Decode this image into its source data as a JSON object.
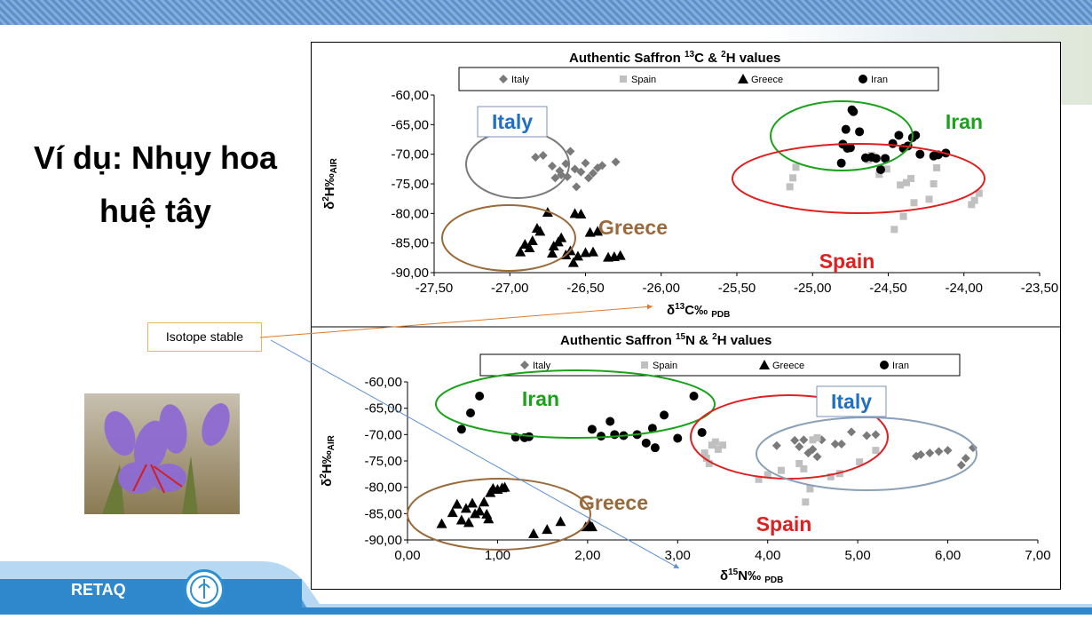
{
  "slide": {
    "title_line1": "Ví dụ: Nhụy hoa",
    "title_line2": "huệ tây",
    "callout": "Isotope stable",
    "brand": "RETAQ"
  },
  "colors": {
    "italy": "#7a7a7a",
    "spain": "#c0c0c0",
    "greece": "#000000",
    "iran": "#000000",
    "iran_ellipse": "#1aa31a",
    "spain_ellipse": "#e02020",
    "italy_label": "#1f6fc4",
    "greece_label": "#9a6a3a",
    "italy_ellipse_top": "#7a7a7a",
    "italy_ellipse_bottom": "#8aa0b8"
  },
  "chart_data": [
    {
      "type": "scatter",
      "title": "Authentic Saffron 13C & 2H values",
      "xlabel": "δ13C‰ PDB",
      "ylabel": "δ2H‰AIR",
      "xlim": [
        -27.5,
        -23.5
      ],
      "ylim": [
        -90,
        -60
      ],
      "x_ticks": [
        "-27,50",
        "-27,00",
        "-26,50",
        "-26,00",
        "-25,50",
        "-25,00",
        "-24,50",
        "-24,00",
        "-23,50"
      ],
      "y_ticks": [
        "-60,00",
        "-65,00",
        "-70,00",
        "-75,00",
        "-80,00",
        "-85,00",
        "-90,00"
      ],
      "legend": [
        "Italy",
        "Spain",
        "Greece",
        "Iran"
      ],
      "legend_position": "top",
      "annotations": [
        "Italy",
        "Greece",
        "Iran",
        "Spain"
      ],
      "series": [
        {
          "name": "Italy",
          "marker": "diamond",
          "points": [
            [
              -26.83,
              -70.5
            ],
            [
              -26.78,
              -70.2
            ],
            [
              -26.72,
              -72.0
            ],
            [
              -26.7,
              -74.0
            ],
            [
              -26.66,
              -73.5
            ],
            [
              -26.63,
              -71.6
            ],
            [
              -26.6,
              -69.5
            ],
            [
              -26.57,
              -72.5
            ],
            [
              -26.56,
              -75.5
            ],
            [
              -26.53,
              -73.0
            ],
            [
              -26.5,
              -71.5
            ],
            [
              -26.48,
              -74.0
            ],
            [
              -26.45,
              -73.2
            ],
            [
              -26.42,
              -72.3
            ],
            [
              -26.39,
              -71.9
            ],
            [
              -26.3,
              -71.3
            ],
            [
              -26.62,
              -73.8
            ],
            [
              -26.67,
              -72.8
            ]
          ]
        },
        {
          "name": "Spain",
          "marker": "square",
          "points": [
            [
              -25.15,
              -75.5
            ],
            [
              -25.13,
              -74.0
            ],
            [
              -25.11,
              -72.2
            ],
            [
              -24.63,
              -71.0
            ],
            [
              -24.61,
              -70.2
            ],
            [
              -24.56,
              -73.4
            ],
            [
              -24.51,
              -72.5
            ],
            [
              -24.46,
              -82.7
            ],
            [
              -24.42,
              -75.2
            ],
            [
              -24.4,
              -80.5
            ],
            [
              -24.38,
              -74.8
            ],
            [
              -24.35,
              -74.1
            ],
            [
              -24.33,
              -78.2
            ],
            [
              -24.23,
              -77.6
            ],
            [
              -24.2,
              -75.0
            ],
            [
              -24.18,
              -72.3
            ],
            [
              -23.95,
              -78.5
            ],
            [
              -23.93,
              -77.8
            ],
            [
              -23.9,
              -76.6
            ]
          ]
        },
        {
          "name": "Greece",
          "marker": "triangle",
          "points": [
            [
              -26.93,
              -86.5
            ],
            [
              -26.9,
              -85.2
            ],
            [
              -26.87,
              -85.8
            ],
            [
              -26.85,
              -84.6
            ],
            [
              -26.82,
              -82.5
            ],
            [
              -26.8,
              -83.0
            ],
            [
              -26.75,
              -79.8
            ],
            [
              -26.72,
              -86.7
            ],
            [
              -26.71,
              -85.5
            ],
            [
              -26.68,
              -84.8
            ],
            [
              -26.66,
              -84.1
            ],
            [
              -26.63,
              -87.0
            ],
            [
              -26.6,
              -86.3
            ],
            [
              -26.58,
              -88.3
            ],
            [
              -26.57,
              -80.0
            ],
            [
              -26.55,
              -87.2
            ],
            [
              -26.53,
              -80.1
            ],
            [
              -26.5,
              -86.6
            ],
            [
              -26.47,
              -83.2
            ],
            [
              -26.45,
              -86.5
            ],
            [
              -26.42,
              -83.0
            ],
            [
              -26.35,
              -87.4
            ],
            [
              -26.31,
              -87.3
            ],
            [
              -26.27,
              -87.1
            ]
          ]
        },
        {
          "name": "Iran",
          "marker": "circle",
          "points": [
            [
              -24.74,
              -62.5
            ],
            [
              -24.73,
              -62.8
            ],
            [
              -24.78,
              -65.8
            ],
            [
              -24.69,
              -66.2
            ],
            [
              -24.8,
              -68.3
            ],
            [
              -24.77,
              -69.0
            ],
            [
              -24.75,
              -68.9
            ],
            [
              -24.81,
              -71.5
            ],
            [
              -24.65,
              -70.6
            ],
            [
              -24.61,
              -70.5
            ],
            [
              -24.58,
              -70.7
            ],
            [
              -24.55,
              -72.6
            ],
            [
              -24.52,
              -70.7
            ],
            [
              -24.47,
              -68.2
            ],
            [
              -24.43,
              -66.8
            ],
            [
              -24.4,
              -69.0
            ],
            [
              -24.37,
              -68.6
            ],
            [
              -24.34,
              -67.2
            ],
            [
              -24.32,
              -66.8
            ],
            [
              -24.29,
              -70.0
            ],
            [
              -24.2,
              -70.3
            ],
            [
              -24.17,
              -70.1
            ],
            [
              -24.12,
              -69.8
            ]
          ]
        }
      ]
    },
    {
      "type": "scatter",
      "title": "Authentic Saffron 15N & 2H values",
      "xlabel": "δ15N‰ PDB",
      "ylabel": "δ2H‰AIR",
      "xlim": [
        0,
        7
      ],
      "ylim": [
        -90,
        -60
      ],
      "x_ticks": [
        "0,00",
        "1,00",
        "2,00",
        "3,00",
        "4,00",
        "5,00",
        "6,00",
        "7,00"
      ],
      "y_ticks": [
        "-60,00",
        "-65,00",
        "-70,00",
        "-75,00",
        "-80,00",
        "-85,00",
        "-90,00"
      ],
      "legend": [
        "Italy",
        "Spain",
        "Greece",
        "Iran"
      ],
      "legend_position": "top",
      "annotations": [
        "Iran",
        "Italy",
        "Greece",
        "Spain"
      ],
      "series": [
        {
          "name": "Italy",
          "marker": "diamond",
          "points": [
            [
              4.1,
              -72.1
            ],
            [
              4.3,
              -71.1
            ],
            [
              4.35,
              -72.3
            ],
            [
              4.4,
              -71.0
            ],
            [
              4.45,
              -73.5
            ],
            [
              4.5,
              -72.8
            ],
            [
              4.55,
              -74.2
            ],
            [
              4.6,
              -71.0
            ],
            [
              4.75,
              -71.8
            ],
            [
              4.82,
              -71.8
            ],
            [
              4.93,
              -69.5
            ],
            [
              5.1,
              -70.2
            ],
            [
              5.2,
              -70.0
            ],
            [
              5.65,
              -74.1
            ],
            [
              5.7,
              -73.8
            ],
            [
              5.8,
              -73.5
            ],
            [
              5.9,
              -73.2
            ],
            [
              6.0,
              -73.0
            ],
            [
              6.15,
              -75.8
            ],
            [
              6.2,
              -74.5
            ],
            [
              6.28,
              -72.5
            ]
          ]
        },
        {
          "name": "Spain",
          "marker": "square",
          "points": [
            [
              3.3,
              -73.5
            ],
            [
              3.32,
              -74.5
            ],
            [
              3.35,
              -75.5
            ],
            [
              3.38,
              -72.0
            ],
            [
              3.42,
              -71.4
            ],
            [
              3.45,
              -72.8
            ],
            [
              3.5,
              -72.0
            ],
            [
              3.9,
              -78.5
            ],
            [
              4.0,
              -77.6
            ],
            [
              4.15,
              -76.8
            ],
            [
              4.35,
              -75.5
            ],
            [
              4.4,
              -76.5
            ],
            [
              4.42,
              -82.8
            ],
            [
              4.47,
              -80.3
            ],
            [
              4.5,
              -71.0
            ],
            [
              4.55,
              -70.6
            ],
            [
              4.7,
              -78.0
            ],
            [
              4.8,
              -77.4
            ],
            [
              5.02,
              -75.2
            ],
            [
              5.2,
              -73.0
            ]
          ]
        },
        {
          "name": "Greece",
          "marker": "triangle",
          "points": [
            [
              0.38,
              -86.9
            ],
            [
              0.5,
              -84.8
            ],
            [
              0.55,
              -83.2
            ],
            [
              0.6,
              -86.2
            ],
            [
              0.65,
              -84.0
            ],
            [
              0.68,
              -86.7
            ],
            [
              0.72,
              -83.0
            ],
            [
              0.75,
              -85.0
            ],
            [
              0.8,
              -84.5
            ],
            [
              0.85,
              -82.8
            ],
            [
              0.88,
              -85.1
            ],
            [
              0.9,
              -86.0
            ],
            [
              0.92,
              -81.0
            ],
            [
              0.95,
              -80.2
            ],
            [
              1.0,
              -80.4
            ],
            [
              1.05,
              -80.1
            ],
            [
              1.08,
              -80.0
            ],
            [
              1.4,
              -88.8
            ],
            [
              1.55,
              -88.0
            ],
            [
              1.7,
              -86.5
            ],
            [
              1.98,
              -87.5
            ],
            [
              2.02,
              -87.0
            ],
            [
              2.05,
              -87.5
            ]
          ]
        },
        {
          "name": "Iran",
          "marker": "circle",
          "points": [
            [
              0.6,
              -69.0
            ],
            [
              0.7,
              -65.9
            ],
            [
              0.8,
              -62.7
            ],
            [
              1.2,
              -70.5
            ],
            [
              1.3,
              -70.6
            ],
            [
              1.35,
              -70.4
            ],
            [
              2.05,
              -69.0
            ],
            [
              2.15,
              -70.3
            ],
            [
              2.25,
              -67.5
            ],
            [
              2.3,
              -70.0
            ],
            [
              2.4,
              -70.2
            ],
            [
              2.55,
              -70.0
            ],
            [
              2.65,
              -71.6
            ],
            [
              2.72,
              -68.8
            ],
            [
              2.75,
              -72.5
            ],
            [
              2.85,
              -66.3
            ],
            [
              3.0,
              -70.7
            ],
            [
              3.18,
              -62.7
            ],
            [
              3.27,
              -69.6
            ]
          ]
        }
      ]
    }
  ]
}
